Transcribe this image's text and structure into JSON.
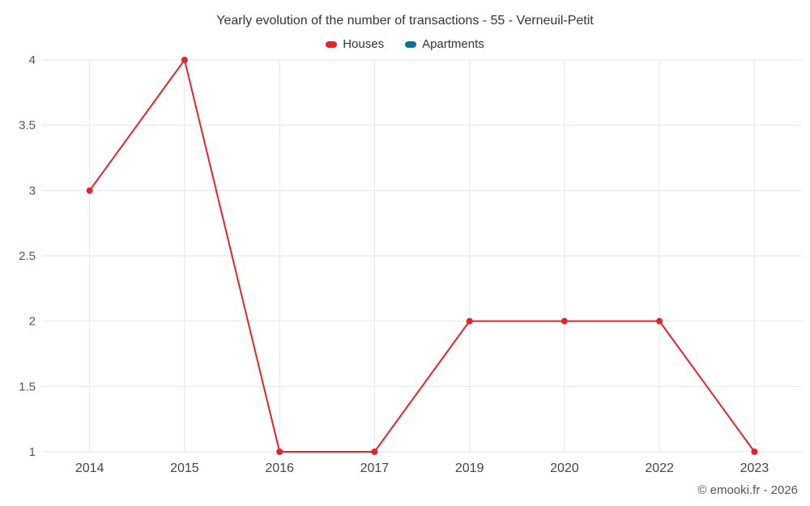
{
  "chart": {
    "footer": "© emooki.fr - 2026"
  },
  "chart_data": {
    "type": "line",
    "title": "Yearly evolution of the number of transactions - 55 - Verneuil-Petit",
    "categories": [
      "2014",
      "2015",
      "2016",
      "2017",
      "2019",
      "2020",
      "2022",
      "2023"
    ],
    "series": [
      {
        "name": "Houses",
        "color": "#e3242b",
        "values": [
          3,
          4,
          1,
          1,
          2,
          2,
          2,
          1
        ]
      },
      {
        "name": "Apartments",
        "color": "#0f6f94",
        "values": []
      }
    ],
    "xlabel": "",
    "ylabel": "",
    "ylim": [
      1,
      4
    ],
    "yticks": [
      1,
      1.5,
      2,
      2.5,
      3,
      3.5,
      4
    ],
    "grid": true,
    "legend_position": "top",
    "grid_color": "#e7e7e7",
    "marker_radius": 4
  }
}
